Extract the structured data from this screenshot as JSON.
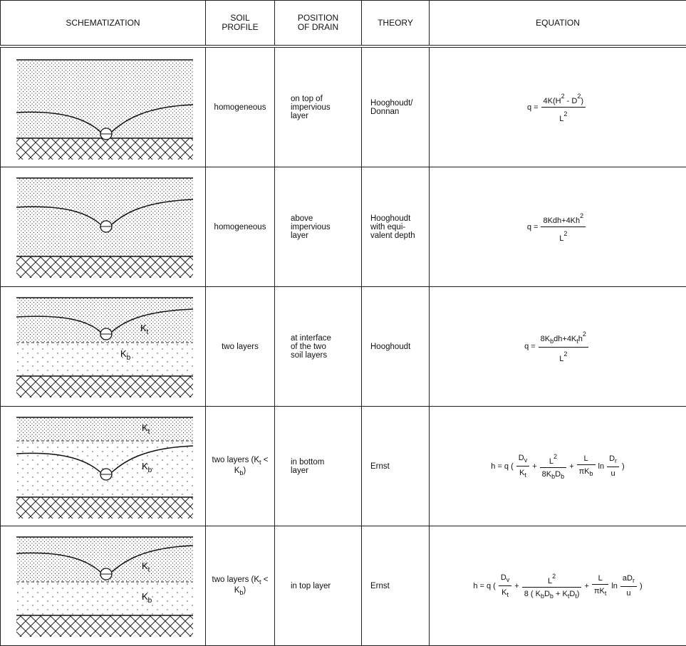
{
  "table": {
    "header": [
      "SCHEMATIZATION",
      "SOIL PROFILE",
      "POSITION OF DRAIN",
      "THEORY",
      "EQUATION"
    ],
    "rows": [
      {
        "labels": [],
        "soil_profile": [
          "homogeneous"
        ],
        "position_of_drain": "on top of impervious layer",
        "theory": "Hooghoudt/ Donnan",
        "equation": [
          "q =",
          {
            "frac": {
              "num": [
                "4K(H",
                {
                  "sup": "2"
                },
                " - D",
                {
                  "sup": "2"
                },
                ")"
              ],
              "den": [
                "L",
                {
                  "sup": "2"
                }
              ]
            }
          }
        ]
      },
      {
        "labels": [],
        "soil_profile": [
          "homogeneous"
        ],
        "position_of_drain": "above impervious layer",
        "theory": "Hooghoudt with equi- valent depth",
        "equation": [
          "q =",
          {
            "frac": {
              "num": [
                "8Kdh+4Kh",
                {
                  "sup": "2"
                }
              ],
              "den": [
                "L",
                {
                  "sup": "2"
                }
              ]
            }
          }
        ]
      },
      {
        "labels": [
          {
            "base": "K",
            "sub": "t"
          },
          {
            "base": "K",
            "sub": "b"
          }
        ],
        "soil_profile": [
          "two layers"
        ],
        "position_of_drain": "at interface of the two soil layers",
        "theory": "Hooghoudt",
        "equation": [
          "q =",
          {
            "frac": {
              "num": [
                "8K",
                {
                  "sub": "b"
                },
                "dh+4K",
                {
                  "sub": "t"
                },
                "h",
                {
                  "sup": "2"
                }
              ],
              "den": [
                "L",
                {
                  "sup": "2"
                }
              ]
            }
          }
        ]
      },
      {
        "labels": [
          {
            "base": "K",
            "sub": "t"
          },
          {
            "base": "K",
            "sub": "b"
          }
        ],
        "soil_profile": [
          "two layers (K",
          {
            "sub": "t"
          },
          " < K",
          {
            "sub": "b"
          },
          ")"
        ],
        "position_of_drain": "in bottom layer",
        "theory": "Ernst",
        "equation": [
          "h = q (",
          {
            "frac": {
              "num": [
                "D",
                {
                  "sub": "v"
                }
              ],
              "den": [
                "K",
                {
                  "sub": "t"
                }
              ]
            }
          },
          "+",
          {
            "frac": {
              "num": [
                "L",
                {
                  "sup": "2"
                }
              ],
              "den": [
                "8K",
                {
                  "sub": "b"
                },
                "D",
                {
                  "sub": "b"
                }
              ]
            }
          },
          "+",
          {
            "frac": {
              "num": [
                "L"
              ],
              "den": [
                "πK",
                {
                  "sub": "b"
                }
              ]
            }
          },
          "ln",
          {
            "frac": {
              "num": [
                "D",
                {
                  "sub": "r"
                }
              ],
              "den": [
                "u"
              ]
            }
          },
          ")"
        ]
      },
      {
        "labels": [
          {
            "base": "K",
            "sub": "t"
          },
          {
            "base": "K",
            "sub": "b"
          }
        ],
        "soil_profile": [
          "two layers (K",
          {
            "sub": "t"
          },
          " < K",
          {
            "sub": "b"
          },
          ")"
        ],
        "position_of_drain": "in top layer",
        "theory": "Ernst",
        "equation": [
          "h = q (",
          {
            "frac": {
              "num": [
                "D",
                {
                  "sub": "v"
                }
              ],
              "den": [
                "K",
                {
                  "sub": "t"
                }
              ]
            }
          },
          "+",
          {
            "frac": {
              "num": [
                "L",
                {
                  "sup": "2"
                }
              ],
              "den": [
                "8 ( K",
                {
                  "sub": "b"
                },
                "D",
                {
                  "sub": "b"
                },
                " + K",
                {
                  "sub": "t"
                },
                "D",
                {
                  "sub": "t"
                },
                ")"
              ]
            }
          },
          "+",
          {
            "frac": {
              "num": [
                "L"
              ],
              "den": [
                "πK",
                {
                  "sub": "t"
                }
              ]
            }
          },
          "ln",
          {
            "frac": {
              "num": [
                "aD",
                {
                  "sub": "r"
                }
              ],
              "den": [
                "u"
              ]
            }
          },
          ")"
        ]
      }
    ]
  }
}
